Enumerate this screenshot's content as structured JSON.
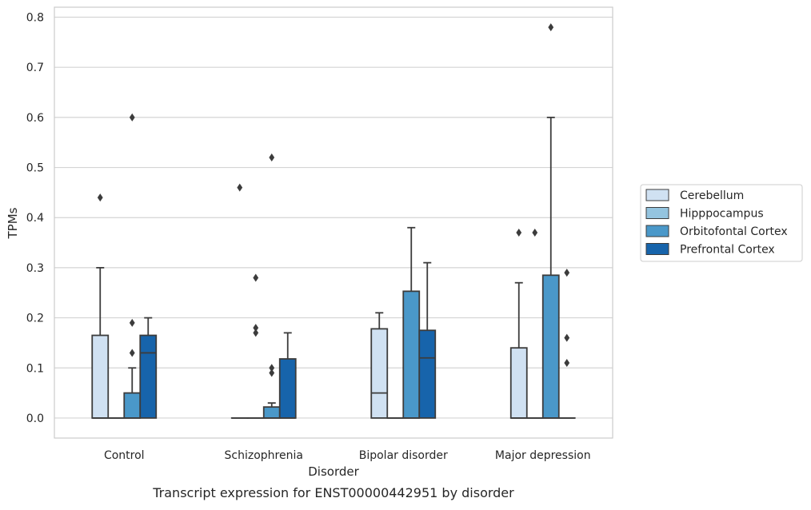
{
  "chart_data": {
    "type": "box",
    "title": "",
    "caption": "Transcript expression for ENST00000442951 by disorder",
    "xlabel": "Disorder",
    "ylabel": "TPMs",
    "ylim": [
      -0.04,
      0.82
    ],
    "yticks": [
      "0.0",
      "0.1",
      "0.2",
      "0.3",
      "0.4",
      "0.5",
      "0.6",
      "0.7",
      "0.8"
    ],
    "ytick_values": [
      0.0,
      0.1,
      0.2,
      0.3,
      0.4,
      0.5,
      0.6,
      0.7,
      0.8
    ],
    "categories": [
      "Control",
      "Schizophrenia",
      "Bipolar disorder",
      "Major depression"
    ],
    "grid": "horizontal",
    "legend_position": "right",
    "series": [
      {
        "name": "Cerebellum",
        "color": "#d0e1f2",
        "boxes": [
          {
            "whisker_low": 0.0,
            "q1": 0.0,
            "median": 0.0,
            "q3": 0.165,
            "whisker_high": 0.3,
            "outliers": [
              0.44
            ]
          },
          {
            "whisker_low": 0.0,
            "q1": 0.0,
            "median": 0.0,
            "q3": 0.0,
            "whisker_high": 0.0,
            "outliers": [
              0.46
            ]
          },
          {
            "whisker_low": 0.0,
            "q1": 0.0,
            "median": 0.05,
            "q3": 0.178,
            "whisker_high": 0.21,
            "outliers": []
          },
          {
            "whisker_low": 0.0,
            "q1": 0.0,
            "median": 0.0,
            "q3": 0.14,
            "whisker_high": 0.27,
            "outliers": [
              0.37
            ]
          }
        ]
      },
      {
        "name": "Hipppocampus",
        "color": "#94c4df",
        "boxes": [
          {
            "whisker_low": 0.0,
            "q1": 0.0,
            "median": 0.0,
            "q3": 0.0,
            "whisker_high": 0.0,
            "outliers": []
          },
          {
            "whisker_low": 0.0,
            "q1": 0.0,
            "median": 0.0,
            "q3": 0.0,
            "whisker_high": 0.0,
            "outliers": [
              0.28,
              0.18,
              0.17
            ]
          },
          {
            "whisker_low": 0.0,
            "q1": 0.0,
            "median": 0.0,
            "q3": 0.0,
            "whisker_high": 0.0,
            "outliers": []
          },
          {
            "whisker_low": 0.0,
            "q1": 0.0,
            "median": 0.0,
            "q3": 0.0,
            "whisker_high": 0.0,
            "outliers": [
              0.37
            ]
          }
        ]
      },
      {
        "name": "Orbitofontal Cortex",
        "color": "#4a98c9",
        "boxes": [
          {
            "whisker_low": 0.0,
            "q1": 0.0,
            "median": 0.0,
            "q3": 0.05,
            "whisker_high": 0.1,
            "outliers": [
              0.6,
              0.19,
              0.13
            ]
          },
          {
            "whisker_low": 0.0,
            "q1": 0.0,
            "median": 0.0,
            "q3": 0.022,
            "whisker_high": 0.03,
            "outliers": [
              0.52,
              0.1,
              0.09
            ]
          },
          {
            "whisker_low": 0.0,
            "q1": 0.0,
            "median": 0.0,
            "q3": 0.253,
            "whisker_high": 0.38,
            "outliers": []
          },
          {
            "whisker_low": 0.0,
            "q1": 0.0,
            "median": 0.0,
            "q3": 0.285,
            "whisker_high": 0.6,
            "outliers": [
              0.78
            ]
          }
        ]
      },
      {
        "name": "Prefrontal Cortex",
        "color": "#1764ab",
        "boxes": [
          {
            "whisker_low": 0.0,
            "q1": 0.0,
            "median": 0.13,
            "q3": 0.165,
            "whisker_high": 0.2,
            "outliers": []
          },
          {
            "whisker_low": 0.0,
            "q1": 0.0,
            "median": 0.0,
            "q3": 0.118,
            "whisker_high": 0.17,
            "outliers": []
          },
          {
            "whisker_low": 0.0,
            "q1": 0.0,
            "median": 0.12,
            "q3": 0.175,
            "whisker_high": 0.31,
            "outliers": []
          },
          {
            "whisker_low": 0.0,
            "q1": 0.0,
            "median": 0.0,
            "q3": 0.0,
            "whisker_high": 0.0,
            "outliers": [
              0.29,
              0.16,
              0.11
            ]
          }
        ]
      }
    ]
  }
}
